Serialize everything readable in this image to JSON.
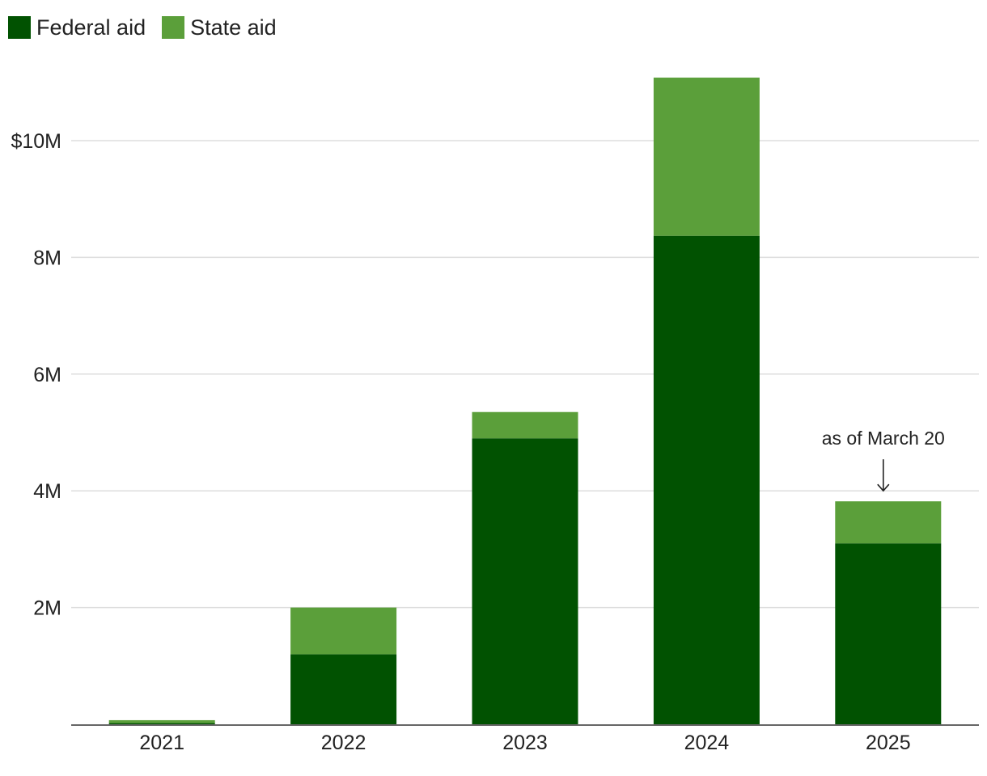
{
  "chart_data": {
    "type": "bar",
    "stacked": true,
    "categories": [
      "2021",
      "2022",
      "2023",
      "2024",
      "2025"
    ],
    "series": [
      {
        "name": "Federal aid",
        "color": "#015201",
        "values": [
          0.02,
          1.2,
          4.9,
          8.37,
          3.1
        ]
      },
      {
        "name": "State aid",
        "color": "#5b9f3a",
        "values": [
          0.05,
          0.8,
          0.45,
          2.71,
          0.72
        ]
      }
    ],
    "y_ticks": [
      {
        "value": 2,
        "label": "2M"
      },
      {
        "value": 4,
        "label": "4M"
      },
      {
        "value": 6,
        "label": "6M"
      },
      {
        "value": 8,
        "label": "8M"
      },
      {
        "value": 10,
        "label": "$10M"
      }
    ],
    "ylim": [
      0,
      11.5
    ],
    "grid": true,
    "legend_position": "top-left",
    "annotations": [
      {
        "category": "2025",
        "text": "as of March 20",
        "arrow": true
      }
    ]
  }
}
